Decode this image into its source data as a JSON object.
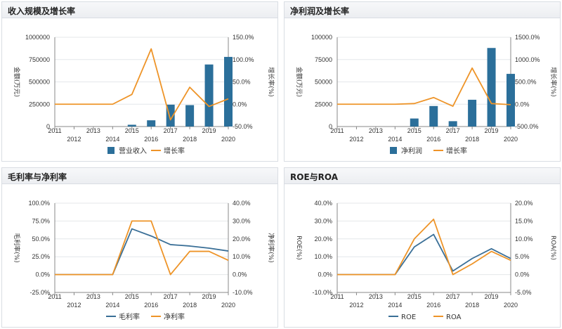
{
  "colors": {
    "bar": "#2b6f9a",
    "line_orange": "#ee9428",
    "line_blue": "#3a6f97",
    "grid": "#e4e7ea",
    "axis": "#888888"
  },
  "panels": [
    {
      "title": "收入规模及增长率"
    },
    {
      "title": "净利润及增长率"
    },
    {
      "title": "毛利率与净利率"
    },
    {
      "title": "ROE与ROA"
    }
  ],
  "chart_data": [
    {
      "type": "bar",
      "title": "收入规模及增长率",
      "categories": [
        "2011",
        "2012",
        "2013",
        "2014",
        "2015",
        "2016",
        "2017",
        "2018",
        "2019",
        "2020"
      ],
      "ylabel": "金额(万元)",
      "y2label": "增长率(%)",
      "ylim": [
        0,
        1000000
      ],
      "yticks": [
        "0",
        "250000",
        "500000",
        "750000",
        "1000000"
      ],
      "y2lim": [
        -50,
        150
      ],
      "y2ticks": [
        "-50.0%",
        "0.0%",
        "50.0%",
        "100.0%",
        "150.0%"
      ],
      "series": [
        {
          "name": "营业收入",
          "kind": "bar",
          "axis": "left",
          "color": "#2b6f9a",
          "values": [
            null,
            null,
            null,
            null,
            20000,
            70000,
            245000,
            240000,
            695000,
            780000
          ]
        },
        {
          "name": "增长率",
          "kind": "line",
          "axis": "right",
          "color": "#ee9428",
          "values": [
            0,
            0,
            0,
            0,
            22,
            124,
            -35,
            38,
            -5,
            12
          ]
        }
      ]
    },
    {
      "type": "bar",
      "title": "净利润及增长率",
      "categories": [
        "2011",
        "2012",
        "2013",
        "2014",
        "2015",
        "2016",
        "2017",
        "2018",
        "2019",
        "2020"
      ],
      "ylabel": "金额(万元)",
      "y2label": "增长率(%)",
      "ylim": [
        0,
        100000
      ],
      "yticks": [
        "0",
        "25000",
        "50000",
        "75000",
        "100000"
      ],
      "y2lim": [
        -500,
        1500
      ],
      "y2ticks": [
        "-500.0%",
        "0.0%",
        "500.0%",
        "1000.0%",
        "1500.0%"
      ],
      "series": [
        {
          "name": "净利润",
          "kind": "bar",
          "axis": "left",
          "color": "#2b6f9a",
          "values": [
            null,
            null,
            null,
            null,
            9000,
            23000,
            6000,
            30000,
            88000,
            59000
          ]
        },
        {
          "name": "增长率",
          "kind": "line",
          "axis": "right",
          "color": "#ee9428",
          "values": [
            0,
            0,
            0,
            0,
            15,
            150,
            -45,
            810,
            15,
            -10
          ]
        }
      ]
    },
    {
      "type": "line",
      "title": "毛利率与净利率",
      "categories": [
        "2011",
        "2012",
        "2013",
        "2014",
        "2015",
        "2016",
        "2017",
        "2018",
        "2019",
        "2020"
      ],
      "ylabel": "毛利率(%)",
      "y2label": "净利率(%)",
      "ylim": [
        -25,
        100
      ],
      "yticks": [
        "-25.0%",
        "0.0%",
        "25.0%",
        "50.0%",
        "75.0%",
        "100.0%"
      ],
      "y2lim": [
        -10,
        40
      ],
      "y2ticks": [
        "-10.0%",
        "0.0%",
        "10.0%",
        "20.0%",
        "30.0%",
        "40.0%"
      ],
      "series": [
        {
          "name": "毛利率",
          "kind": "line",
          "axis": "left",
          "color": "#3a6f97",
          "values": [
            0,
            0,
            0,
            0,
            64,
            54,
            42,
            40,
            37,
            33
          ]
        },
        {
          "name": "净利率",
          "kind": "line",
          "axis": "right",
          "color": "#ee9428",
          "values": [
            0,
            0,
            0,
            0,
            30,
            30,
            0,
            13,
            13,
            8
          ]
        }
      ]
    },
    {
      "type": "line",
      "title": "ROE与ROA",
      "categories": [
        "2011",
        "2012",
        "2013",
        "2014",
        "2015",
        "2016",
        "2017",
        "2018",
        "2019",
        "2020"
      ],
      "ylabel": "ROE(%)",
      "y2label": "ROA(%)",
      "ylim": [
        -10,
        40
      ],
      "yticks": [
        "-10.0%",
        "0.0%",
        "10.0%",
        "20.0%",
        "30.0%",
        "40.0%"
      ],
      "y2lim": [
        -5,
        20
      ],
      "y2ticks": [
        "-5.0%",
        "0.0%",
        "5.0%",
        "10.0%",
        "15.0%",
        "20.0%"
      ],
      "series": [
        {
          "name": "ROE",
          "kind": "line",
          "axis": "left",
          "color": "#3a6f97",
          "values": [
            0,
            0,
            0,
            0,
            15.5,
            22.5,
            2,
            9,
            14.5,
            9
          ]
        },
        {
          "name": "ROA",
          "kind": "line",
          "axis": "right",
          "color": "#ee9428",
          "values": [
            0,
            0,
            0,
            0,
            10,
            15.5,
            0,
            3,
            6.5,
            4
          ]
        }
      ]
    }
  ]
}
